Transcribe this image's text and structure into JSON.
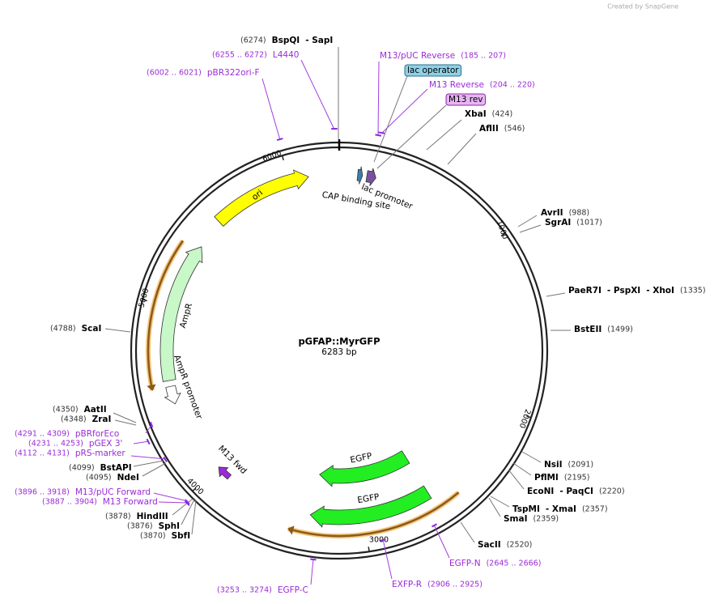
{
  "branding": "Created by SnapGene",
  "plasmid": {
    "name": "pGFAP::MyrGFP",
    "length": "6283 bp"
  },
  "ring_ticks": [
    "1000",
    "2000",
    "3000",
    "4000",
    "5000",
    "6000"
  ],
  "enzymes": [
    {
      "names": [
        "BspQI",
        "- SapI"
      ],
      "position": "(6274)"
    },
    {
      "names": [
        "XbaI"
      ],
      "position": "(424)"
    },
    {
      "names": [
        "AflII"
      ],
      "position": "(546)"
    },
    {
      "names": [
        "AvrII"
      ],
      "position": "(988)"
    },
    {
      "names": [
        "SgrAI"
      ],
      "position": "(1017)"
    },
    {
      "names": [
        "PaeR7I",
        "- PspXI",
        "- XhoI"
      ],
      "position": "(1335)"
    },
    {
      "names": [
        "BstEII"
      ],
      "position": "(1499)"
    },
    {
      "names": [
        "NsiI"
      ],
      "position": "(2091)"
    },
    {
      "names": [
        "PflMI"
      ],
      "position": "(2195)"
    },
    {
      "names": [
        "EcoNI",
        "- PaqCI"
      ],
      "position": "(2220)"
    },
    {
      "names": [
        "TspMI",
        "- XmaI"
      ],
      "position": "(2357)"
    },
    {
      "names": [
        "SmaI"
      ],
      "position": "(2359)"
    },
    {
      "names": [
        "SacII"
      ],
      "position": "(2520)"
    },
    {
      "names": [
        "ScaI"
      ],
      "position": "(4788)"
    },
    {
      "names": [
        "AatII"
      ],
      "position": "(4350)"
    },
    {
      "names": [
        "ZraI"
      ],
      "position": "(4348)"
    },
    {
      "names": [
        "BstAPI"
      ],
      "position": "(4099)"
    },
    {
      "names": [
        "NdeI"
      ],
      "position": "(4095)"
    },
    {
      "names": [
        "HindIII"
      ],
      "position": "(3878)"
    },
    {
      "names": [
        "SphI"
      ],
      "position": "(3876)"
    },
    {
      "names": [
        "SbfI"
      ],
      "position": "(3870)"
    }
  ],
  "primers": [
    {
      "name": "L4440",
      "range": "(6255 .. 6272)"
    },
    {
      "name": "pBR322ori-F",
      "range": "(6002 .. 6021)"
    },
    {
      "name": "M13/pUC Reverse",
      "range": "(185 .. 207)"
    },
    {
      "name": "M13 Reverse",
      "range": "(204 .. 220)"
    },
    {
      "name": "pBRforEco",
      "range": "(4291 .. 4309)"
    },
    {
      "name": "pGEX 3'",
      "range": "(4231 .. 4253)"
    },
    {
      "name": "pRS-marker",
      "range": "(4112 .. 4131)"
    },
    {
      "name": "M13/pUC Forward",
      "range": "(3896 .. 3918)"
    },
    {
      "name": "M13 Forward",
      "range": "(3887 .. 3904)"
    },
    {
      "name": "EGFP-N",
      "range": "(2645 .. 2666)"
    },
    {
      "name": "EXFP-R",
      "range": "(2906 .. 2925)"
    },
    {
      "name": "EGFP-C",
      "range": "(3253 .. 3274)"
    }
  ],
  "boxed_features": [
    "lac operator",
    "M13 rev"
  ],
  "features": [
    "ori",
    "AmpR",
    "AmpR promoter",
    "lac promoter",
    "CAP binding site",
    "EGFP",
    "EGFP",
    "M13 fwd"
  ]
}
